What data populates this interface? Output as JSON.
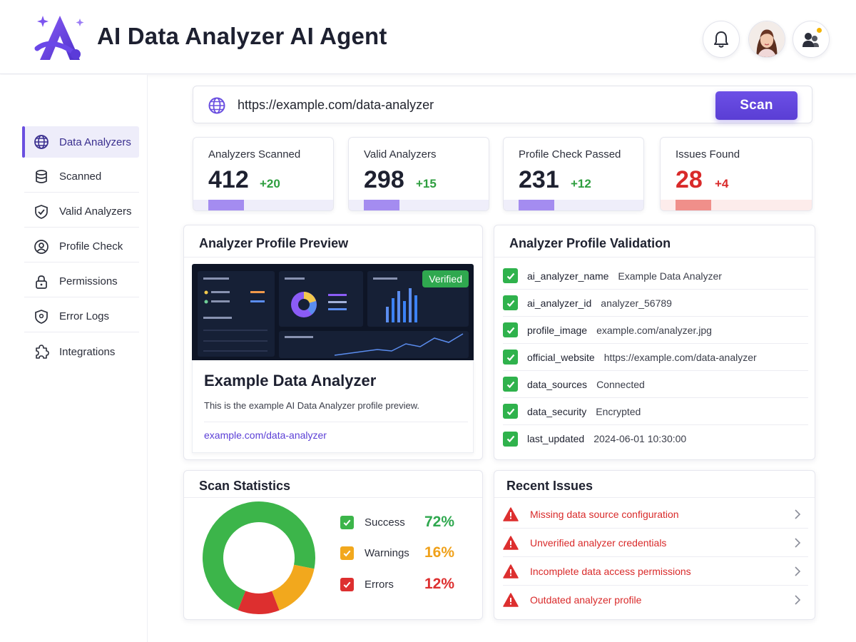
{
  "header": {
    "title": "AI Data Analyzer AI Agent",
    "icons": [
      "logo-icon",
      "bell-icon",
      "user-avatar",
      "agent-icon"
    ]
  },
  "sidebar": {
    "items": [
      {
        "label": "Data Analyzers",
        "icon": "globe-icon",
        "active": true
      },
      {
        "label": "Scanned",
        "icon": "database-icon",
        "active": false
      },
      {
        "label": "Valid Analyzers",
        "icon": "shield-check-icon",
        "active": false
      },
      {
        "label": "Profile Check",
        "icon": "user-circle-icon",
        "active": false
      },
      {
        "label": "Permissions",
        "icon": "lock-icon",
        "active": false
      },
      {
        "label": "Error Logs",
        "icon": "shield-alert-icon",
        "active": false
      },
      {
        "label": "Integrations",
        "icon": "puzzle-icon",
        "active": false
      }
    ]
  },
  "urlbar": {
    "value": "https://example.com/data-analyzer",
    "scan_label": "Scan"
  },
  "stats": [
    {
      "label": "Analyzers Scanned",
      "value": "412",
      "delta": "+20"
    },
    {
      "label": "Valid Analyzers",
      "value": "298",
      "delta": "+15"
    },
    {
      "label": "Profile Check Passed",
      "value": "231",
      "delta": "+12"
    },
    {
      "label": "Issues Found",
      "value": "28",
      "delta": "+4"
    }
  ],
  "preview": {
    "title": "Analyzer Profile Preview",
    "badge": "Verified",
    "name": "Example Data Analyzer",
    "description": "This is the example AI Data Analyzer profile preview.",
    "link": "example.com/data-analyzer"
  },
  "validation": {
    "title": "Analyzer Profile Validation",
    "rows": [
      {
        "key": "ai_analyzer_name",
        "value": "Example Data Analyzer"
      },
      {
        "key": "ai_analyzer_id",
        "value": "analyzer_56789"
      },
      {
        "key": "profile_image",
        "value": "example.com/analyzer.jpg"
      },
      {
        "key": "official_website",
        "value": "https://example.com/data-analyzer"
      },
      {
        "key": "data_sources",
        "value": "Connected"
      },
      {
        "key": "data_security",
        "value": "Encrypted"
      },
      {
        "key": "last_updated",
        "value": "2024-06-01 10:30:00"
      }
    ]
  },
  "scan_statistics": {
    "title": "Scan Statistics",
    "items": [
      {
        "label": "Success",
        "pct": "72%",
        "color": "#3cb54a"
      },
      {
        "label": "Warnings",
        "pct": "16%",
        "color": "#f2a81d"
      },
      {
        "label": "Errors",
        "pct": "12%",
        "color": "#dd2f2f"
      }
    ]
  },
  "chart_data": {
    "type": "pie",
    "categories": [
      "Success",
      "Warnings",
      "Errors"
    ],
    "values": [
      72,
      16,
      12
    ],
    "title": "Scan Statistics",
    "colors": [
      "#3cb54a",
      "#f2a81d",
      "#dd2f2f"
    ]
  },
  "recent_issues": {
    "title": "Recent Issues",
    "items": [
      "Missing data source configuration",
      "Unverified analyzer credentials",
      "Incomplete data access permissions",
      "Outdated analyzer profile"
    ]
  },
  "colors": {
    "accent": "#6c4fe6",
    "success": "#2fb24c",
    "danger": "#d92a2a"
  }
}
